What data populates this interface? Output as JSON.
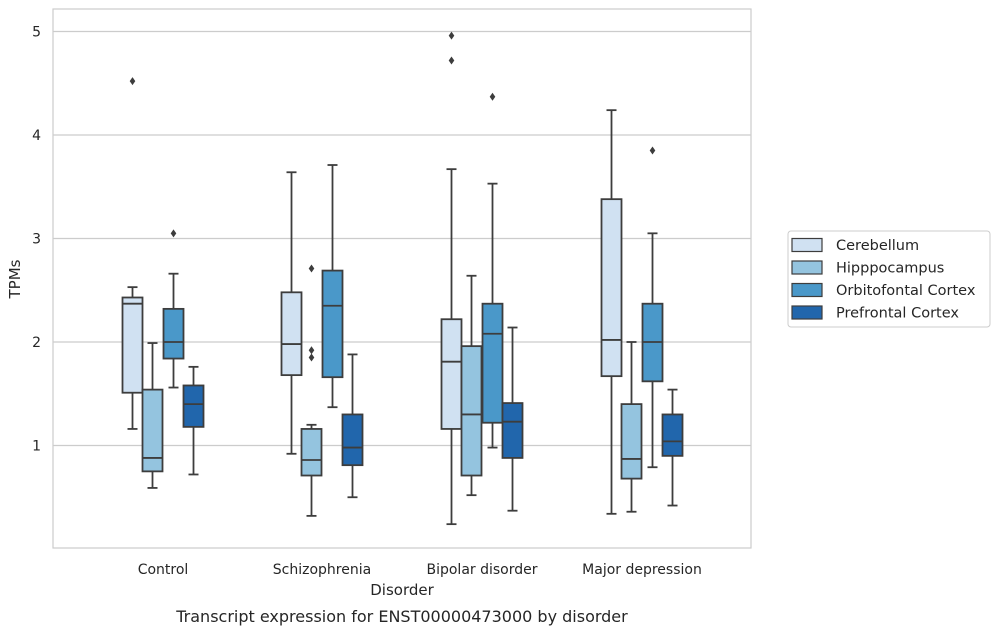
{
  "caption": "Transcript expression for ENST00000473000 by disorder",
  "chart_data": {
    "type": "box",
    "title": "",
    "xlabel": "Disorder",
    "ylabel": "TPMs",
    "categories": [
      "Control",
      "Schizophrenia",
      "Bipolar disorder",
      "Major depression"
    ],
    "ylim": [
      0,
      5.2
    ],
    "yticks": [
      1,
      2,
      3,
      4,
      5
    ],
    "grid": "horizontal",
    "legend_position": "right",
    "series": [
      {
        "name": "Cerebellum",
        "color": "#d0e1f2",
        "boxes": [
          {
            "whislo": 1.16,
            "q1": 1.51,
            "med": 2.37,
            "q3": 2.43,
            "whishi": 2.53,
            "fliers": [
              4.52
            ]
          },
          {
            "whislo": 0.92,
            "q1": 1.68,
            "med": 1.98,
            "q3": 2.48,
            "whishi": 3.64,
            "fliers": []
          },
          {
            "whislo": 0.24,
            "q1": 1.16,
            "med": 1.81,
            "q3": 2.22,
            "whishi": 3.67,
            "fliers": [
              4.72,
              4.96
            ]
          },
          {
            "whislo": 0.34,
            "q1": 1.67,
            "med": 2.02,
            "q3": 3.38,
            "whishi": 4.24,
            "fliers": []
          }
        ]
      },
      {
        "name": "Hipppocampus",
        "color": "#94c4df",
        "boxes": [
          {
            "whislo": 0.59,
            "q1": 0.75,
            "med": 0.88,
            "q3": 1.54,
            "whishi": 1.99,
            "fliers": []
          },
          {
            "whislo": 0.32,
            "q1": 0.71,
            "med": 0.86,
            "q3": 1.16,
            "whishi": 1.2,
            "fliers": [
              1.85,
              1.92,
              2.71
            ]
          },
          {
            "whislo": 0.52,
            "q1": 0.71,
            "med": 1.3,
            "q3": 1.96,
            "whishi": 2.64,
            "fliers": []
          },
          {
            "whislo": 0.36,
            "q1": 0.68,
            "med": 0.87,
            "q3": 1.4,
            "whishi": 2.0,
            "fliers": []
          }
        ]
      },
      {
        "name": "Orbitofontal Cortex",
        "color": "#4a98c9",
        "boxes": [
          {
            "whislo": 1.56,
            "q1": 1.84,
            "med": 2.0,
            "q3": 2.32,
            "whishi": 2.66,
            "fliers": [
              3.05
            ]
          },
          {
            "whislo": 1.37,
            "q1": 1.66,
            "med": 2.35,
            "q3": 2.69,
            "whishi": 3.71,
            "fliers": []
          },
          {
            "whislo": 0.98,
            "q1": 1.22,
            "med": 2.08,
            "q3": 2.37,
            "whishi": 3.53,
            "fliers": [
              4.37
            ]
          },
          {
            "whislo": 0.79,
            "q1": 1.62,
            "med": 2.0,
            "q3": 2.37,
            "whishi": 3.05,
            "fliers": [
              3.85
            ]
          }
        ]
      },
      {
        "name": "Prefrontal Cortex",
        "color": "#2166ac",
        "boxes": [
          {
            "whislo": 0.72,
            "q1": 1.18,
            "med": 1.4,
            "q3": 1.58,
            "whishi": 1.76,
            "fliers": []
          },
          {
            "whislo": 0.5,
            "q1": 0.81,
            "med": 0.98,
            "q3": 1.3,
            "whishi": 1.88,
            "fliers": []
          },
          {
            "whislo": 0.37,
            "q1": 0.88,
            "med": 1.23,
            "q3": 1.41,
            "whishi": 2.14,
            "fliers": []
          },
          {
            "whislo": 0.42,
            "q1": 0.9,
            "med": 1.04,
            "q3": 1.3,
            "whishi": 1.54,
            "fliers": []
          }
        ]
      }
    ]
  }
}
